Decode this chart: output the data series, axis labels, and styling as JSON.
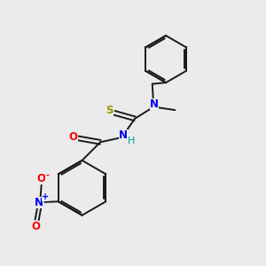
{
  "background_color": "#ebebeb",
  "bond_color": "#1a1a1a",
  "S_color": "#999900",
  "O_color": "#ff0000",
  "N_color": "#0000ee",
  "H_color": "#009999",
  "figsize": [
    3.0,
    3.0
  ],
  "dpi": 100,
  "lw": 1.4,
  "fs": 8.5,
  "xlim": [
    0,
    10
  ],
  "ylim": [
    0,
    10
  ]
}
